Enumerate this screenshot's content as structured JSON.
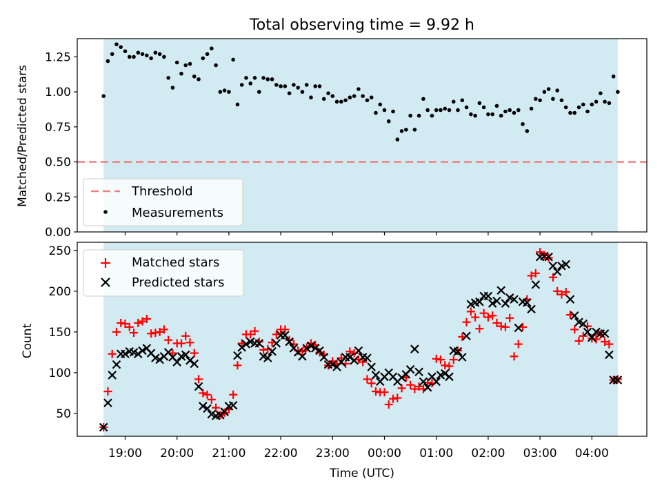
{
  "chart_data": [
    {
      "type": "scatter",
      "title": "Total observing time = 9.92 h",
      "xlabel": "",
      "ylabel": "Matched/Predicted stars",
      "ylim": [
        0,
        1.38
      ],
      "yticks": [
        "0.00",
        "0.25",
        "0.50",
        "0.75",
        "1.00",
        "1.25"
      ],
      "threshold": 0.5,
      "legend": [
        "Threshold",
        "Measurements"
      ],
      "legend_position": "lower-left",
      "grid": false,
      "shaded_span": [
        "18:35",
        "04:30"
      ],
      "colors": {
        "shade": "#add8e6",
        "threshold": "#f08080",
        "points": "#000000"
      },
      "series": [
        {
          "name": "Measurements",
          "x": [
            "18:35",
            "18:40",
            "18:45",
            "18:50",
            "18:55",
            "19:00",
            "19:05",
            "19:10",
            "19:15",
            "19:20",
            "19:25",
            "19:30",
            "19:35",
            "19:40",
            "19:45",
            "19:50",
            "19:55",
            "20:00",
            "20:05",
            "20:10",
            "20:15",
            "20:20",
            "20:25",
            "20:30",
            "20:35",
            "20:40",
            "20:45",
            "20:50",
            "20:55",
            "21:00",
            "21:05",
            "21:10",
            "21:15",
            "21:20",
            "21:25",
            "21:30",
            "21:35",
            "21:40",
            "21:45",
            "21:50",
            "21:55",
            "22:00",
            "22:05",
            "22:10",
            "22:15",
            "22:20",
            "22:25",
            "22:30",
            "22:35",
            "22:40",
            "22:45",
            "22:50",
            "22:55",
            "23:00",
            "23:05",
            "23:10",
            "23:15",
            "23:20",
            "23:25",
            "23:30",
            "23:35",
            "23:40",
            "23:45",
            "23:50",
            "23:55",
            "00:00",
            "00:05",
            "00:10",
            "00:15",
            "00:20",
            "00:25",
            "00:30",
            "00:35",
            "00:40",
            "00:45",
            "00:50",
            "00:55",
            "01:00",
            "01:05",
            "01:10",
            "01:15",
            "01:20",
            "01:25",
            "01:30",
            "01:35",
            "01:40",
            "01:45",
            "01:50",
            "01:55",
            "02:00",
            "02:05",
            "02:10",
            "02:15",
            "02:20",
            "02:25",
            "02:30",
            "02:35",
            "02:40",
            "02:45",
            "02:50",
            "02:55",
            "03:00",
            "03:05",
            "03:10",
            "03:15",
            "03:20",
            "03:25",
            "03:30",
            "03:35",
            "03:40",
            "03:45",
            "03:50",
            "03:55",
            "04:00",
            "04:05",
            "04:10",
            "04:15",
            "04:20",
            "04:25",
            "04:30"
          ],
          "y": [
            0.97,
            1.22,
            1.27,
            1.34,
            1.32,
            1.29,
            1.25,
            1.25,
            1.28,
            1.27,
            1.26,
            1.24,
            1.28,
            1.27,
            1.25,
            1.1,
            1.03,
            1.21,
            1.13,
            1.19,
            1.2,
            1.11,
            1.09,
            1.24,
            1.27,
            1.31,
            1.19,
            1.0,
            1.01,
            1.0,
            1.23,
            0.91,
            1.05,
            1.1,
            1.06,
            1.1,
            1.0,
            1.1,
            1.09,
            1.09,
            1.05,
            1.04,
            1.04,
            0.99,
            1.05,
            1.03,
            1.0,
            1.05,
            0.96,
            1.04,
            1.04,
            0.95,
            0.99,
            0.97,
            0.93,
            0.93,
            0.94,
            0.96,
            0.97,
            1.02,
            0.97,
            0.94,
            0.96,
            0.85,
            0.91,
            0.87,
            0.79,
            0.86,
            0.66,
            0.72,
            0.73,
            0.83,
            0.73,
            0.83,
            0.95,
            0.87,
            0.83,
            0.87,
            0.87,
            0.88,
            0.87,
            0.93,
            0.87,
            0.94,
            0.89,
            0.84,
            0.83,
            0.92,
            0.89,
            0.84,
            0.84,
            0.9,
            0.83,
            0.86,
            0.87,
            0.85,
            0.87,
            0.77,
            0.72,
            0.88,
            0.95,
            0.94,
            1.0,
            1.02,
            0.95,
            1.01,
            0.94,
            0.89,
            0.85,
            0.85,
            0.89,
            0.91,
            0.86,
            0.91,
            0.93,
            0.99,
            0.93,
            0.92,
            1.11,
            1.0
          ]
        }
      ]
    },
    {
      "type": "scatter",
      "title": "",
      "xlabel": "Time (UTC)",
      "ylabel": "Count",
      "ylim": [
        22,
        260
      ],
      "yticks": [
        "50",
        "100",
        "150",
        "200",
        "250"
      ],
      "xticks": [
        "19:00",
        "20:00",
        "21:00",
        "22:00",
        "23:00",
        "00:00",
        "01:00",
        "02:00",
        "03:00",
        "04:00"
      ],
      "legend": [
        "Matched stars",
        "Predicted stars"
      ],
      "legend_position": "upper-left",
      "grid": false,
      "shaded_span": [
        "18:35",
        "04:30"
      ],
      "colors": {
        "shade": "#add8e6",
        "matched": "#ff0000",
        "predicted": "#000000"
      },
      "series": [
        {
          "name": "Matched stars",
          "x": [
            "18:35",
            "18:40",
            "18:45",
            "18:50",
            "18:55",
            "19:00",
            "19:05",
            "19:10",
            "19:15",
            "19:20",
            "19:25",
            "19:30",
            "19:35",
            "19:40",
            "19:45",
            "19:50",
            "19:55",
            "20:00",
            "20:05",
            "20:10",
            "20:15",
            "20:20",
            "20:25",
            "20:30",
            "20:35",
            "20:40",
            "20:45",
            "20:50",
            "20:55",
            "21:00",
            "21:05",
            "21:10",
            "21:15",
            "21:20",
            "21:25",
            "21:30",
            "21:35",
            "21:40",
            "21:45",
            "21:50",
            "21:55",
            "22:00",
            "22:05",
            "22:10",
            "22:15",
            "22:20",
            "22:25",
            "22:30",
            "22:35",
            "22:40",
            "22:45",
            "22:50",
            "22:55",
            "23:00",
            "23:05",
            "23:10",
            "23:15",
            "23:20",
            "23:25",
            "23:30",
            "23:35",
            "23:40",
            "23:45",
            "23:50",
            "23:55",
            "00:00",
            "00:05",
            "00:10",
            "00:15",
            "00:20",
            "00:25",
            "00:30",
            "00:35",
            "00:40",
            "00:45",
            "00:50",
            "00:55",
            "01:00",
            "01:05",
            "01:10",
            "01:15",
            "01:20",
            "01:25",
            "01:30",
            "01:35",
            "01:40",
            "01:45",
            "01:50",
            "01:55",
            "02:00",
            "02:05",
            "02:10",
            "02:15",
            "02:20",
            "02:25",
            "02:30",
            "02:35",
            "02:40",
            "02:45",
            "02:50",
            "02:55",
            "03:00",
            "03:05",
            "03:10",
            "03:15",
            "03:20",
            "03:25",
            "03:30",
            "03:35",
            "03:40",
            "03:45",
            "03:50",
            "03:55",
            "04:00",
            "04:05",
            "04:10",
            "04:15",
            "04:20",
            "04:25",
            "04:30"
          ],
          "y": [
            33,
            77,
            123,
            150,
            161,
            160,
            156,
            149,
            161,
            163,
            166,
            148,
            149,
            150,
            153,
            140,
            124,
            136,
            136,
            145,
            137,
            124,
            92,
            75,
            73,
            67,
            57,
            48,
            51,
            55,
            73,
            109,
            136,
            147,
            147,
            151,
            138,
            128,
            129,
            137,
            147,
            153,
            153,
            140,
            135,
            127,
            126,
            131,
            136,
            134,
            125,
            122,
            109,
            114,
            111,
            118,
            111,
            126,
            124,
            116,
            113,
            92,
            87,
            77,
            76,
            76,
            61,
            68,
            69,
            81,
            94,
            85,
            80,
            83,
            80,
            88,
            87,
            117,
            116,
            109,
            108,
            116,
            127,
            144,
            162,
            175,
            168,
            154,
            173,
            168,
            170,
            161,
            157,
            156,
            167,
            120,
            135,
            156,
            190,
            219,
            222,
            248,
            244,
            241,
            217,
            200,
            196,
            199,
            171,
            153,
            139,
            145,
            157,
            142,
            141,
            147,
            138,
            135,
            91,
            92
          ]
        },
        {
          "name": "Predicted stars",
          "x": [
            "18:35",
            "18:40",
            "18:45",
            "18:50",
            "18:55",
            "19:00",
            "19:05",
            "19:10",
            "19:15",
            "19:20",
            "19:25",
            "19:30",
            "19:35",
            "19:40",
            "19:45",
            "19:50",
            "19:55",
            "20:00",
            "20:05",
            "20:10",
            "20:15",
            "20:20",
            "20:25",
            "20:30",
            "20:35",
            "20:40",
            "20:45",
            "20:50",
            "20:55",
            "21:00",
            "21:05",
            "21:10",
            "21:15",
            "21:20",
            "21:25",
            "21:30",
            "21:35",
            "21:40",
            "21:45",
            "21:50",
            "21:55",
            "22:00",
            "22:05",
            "22:10",
            "22:15",
            "22:20",
            "22:25",
            "22:30",
            "22:35",
            "22:40",
            "22:45",
            "22:50",
            "22:55",
            "23:00",
            "23:05",
            "23:10",
            "23:15",
            "23:20",
            "23:25",
            "23:30",
            "23:35",
            "23:40",
            "23:45",
            "23:50",
            "23:55",
            "00:00",
            "00:05",
            "00:10",
            "00:15",
            "00:20",
            "00:25",
            "00:30",
            "00:35",
            "00:40",
            "00:45",
            "00:50",
            "00:55",
            "01:00",
            "01:05",
            "01:10",
            "01:15",
            "01:20",
            "01:25",
            "01:30",
            "01:35",
            "01:40",
            "01:45",
            "01:50",
            "01:55",
            "02:00",
            "02:05",
            "02:10",
            "02:15",
            "02:20",
            "02:25",
            "02:30",
            "02:35",
            "02:40",
            "02:45",
            "02:50",
            "02:55",
            "03:00",
            "03:05",
            "03:10",
            "03:15",
            "03:20",
            "03:25",
            "03:30",
            "03:35",
            "03:40",
            "03:45",
            "03:50",
            "03:55",
            "04:00",
            "04:05",
            "04:10",
            "04:15",
            "04:20",
            "04:25",
            "04:30"
          ],
          "y": [
            33,
            63,
            97,
            110,
            123,
            123,
            126,
            125,
            123,
            127,
            130,
            124,
            118,
            116,
            120,
            125,
            119,
            113,
            120,
            122,
            115,
            111,
            83,
            59,
            56,
            49,
            47,
            48,
            52,
            59,
            60,
            121,
            131,
            135,
            138,
            136,
            136,
            120,
            118,
            126,
            136,
            146,
            146,
            138,
            130,
            125,
            120,
            130,
            133,
            130,
            127,
            119,
            110,
            110,
            107,
            113,
            119,
            119,
            115,
            127,
            119,
            118,
            107,
            97,
            89,
            95,
            100,
            95,
            89,
            94,
            98,
            104,
            129,
            101,
            89,
            82,
            95,
            89,
            97,
            99,
            95,
            127,
            126,
            119,
            145,
            184,
            186,
            187,
            194,
            194,
            185,
            188,
            201,
            185,
            192,
            190,
            155,
            187,
            186,
            178,
            208,
            242,
            243,
            242,
            231,
            224,
            231,
            233,
            190,
            170,
            162,
            160,
            150,
            143,
            150,
            148,
            148,
            122,
            91,
            91
          ]
        }
      ]
    }
  ]
}
